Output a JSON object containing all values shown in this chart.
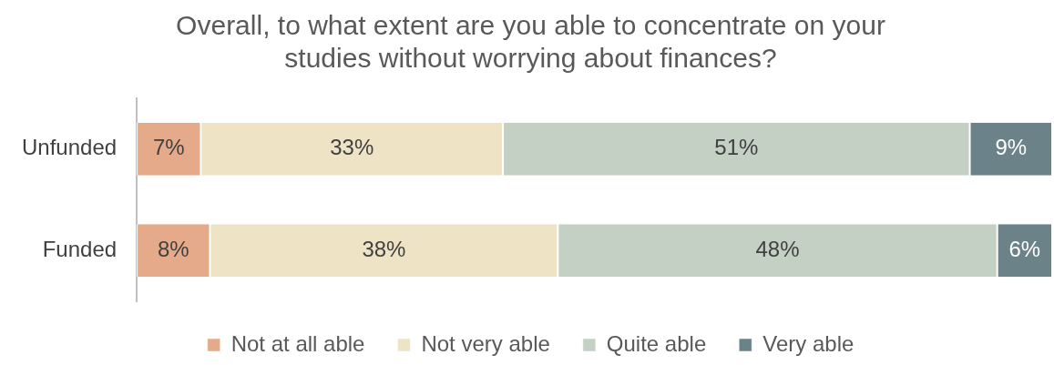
{
  "chart_data": {
    "type": "bar",
    "orientation": "horizontal",
    "stacked": true,
    "title": "Overall, to what extent are you able to concentrate on your studies without worrying about finances?",
    "categories": [
      "Unfunded",
      "Funded"
    ],
    "series": [
      {
        "name": "Not at all able",
        "color": "#e5aa8a",
        "values": [
          7,
          8
        ],
        "value_labels": [
          "7%",
          "8%"
        ]
      },
      {
        "name": "Not very able",
        "color": "#efe3c6",
        "values": [
          33,
          38
        ],
        "value_labels": [
          "33%",
          "38%"
        ]
      },
      {
        "name": "Quite able",
        "color": "#c3d0c3",
        "values": [
          51,
          48
        ],
        "value_labels": [
          "51%",
          "48%"
        ]
      },
      {
        "name": "Very able",
        "color": "#6b8288",
        "values": [
          9,
          6
        ],
        "value_labels": [
          "9%",
          "6%"
        ]
      }
    ],
    "xlim": [
      0,
      100
    ],
    "tick_labels": "y",
    "legend": "bottom"
  }
}
